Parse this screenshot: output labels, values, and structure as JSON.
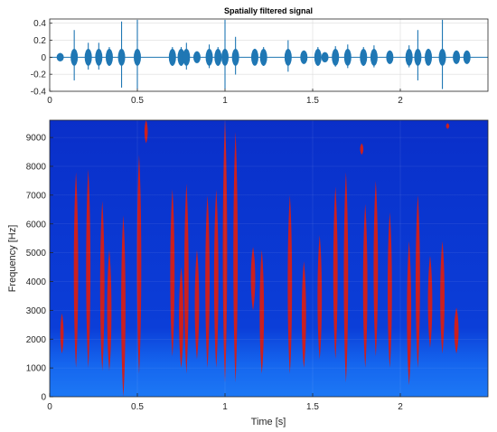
{
  "chart_data": [
    {
      "type": "line",
      "title": "Spatially filtered signal",
      "xlabel": "",
      "ylabel": "",
      "xlim": [
        0,
        2.5
      ],
      "ylim": [
        -0.4,
        0.45
      ],
      "xticks": [
        "0",
        "0.5",
        "1",
        "1.5",
        "2"
      ],
      "xtick_values": [
        0,
        0.5,
        1,
        1.5,
        2
      ],
      "yticks": [
        "0.4",
        "0.2",
        "0",
        "-0.2",
        "-0.4"
      ],
      "ytick_values": [
        0.4,
        0.2,
        0,
        -0.2,
        -0.4
      ],
      "grid": true,
      "series_color": "#1f77b4",
      "series": [
        {
          "bursts": [
            {
              "t": 0.06,
              "amp": 0.05
            },
            {
              "t": 0.14,
              "amp": 0.32
            },
            {
              "t": 0.22,
              "amp": 0.17
            },
            {
              "t": 0.28,
              "amp": 0.17
            },
            {
              "t": 0.34,
              "amp": 0.12
            },
            {
              "t": 0.41,
              "amp": 0.42
            },
            {
              "t": 0.5,
              "amp": 0.44
            },
            {
              "t": 0.7,
              "amp": 0.12
            },
            {
              "t": 0.75,
              "amp": 0.12
            },
            {
              "t": 0.78,
              "amp": 0.17
            },
            {
              "t": 0.84,
              "amp": 0.07
            },
            {
              "t": 0.91,
              "amp": 0.15
            },
            {
              "t": 0.96,
              "amp": 0.12
            },
            {
              "t": 1.0,
              "amp": 0.44
            },
            {
              "t": 1.06,
              "amp": 0.24
            },
            {
              "t": 1.17,
              "amp": 0.1
            },
            {
              "t": 1.22,
              "amp": 0.12
            },
            {
              "t": 1.36,
              "amp": 0.2
            },
            {
              "t": 1.45,
              "amp": 0.08
            },
            {
              "t": 1.53,
              "amp": 0.12
            },
            {
              "t": 1.57,
              "amp": 0.06
            },
            {
              "t": 1.63,
              "amp": 0.13
            },
            {
              "t": 1.7,
              "amp": 0.15
            },
            {
              "t": 1.79,
              "amp": 0.12
            },
            {
              "t": 1.85,
              "amp": 0.14
            },
            {
              "t": 1.94,
              "amp": 0.08
            },
            {
              "t": 2.05,
              "amp": 0.14
            },
            {
              "t": 2.1,
              "amp": 0.32
            },
            {
              "t": 2.16,
              "amp": 0.1
            },
            {
              "t": 2.24,
              "amp": 0.44
            },
            {
              "t": 2.32,
              "amp": 0.08
            },
            {
              "t": 2.38,
              "amp": 0.08
            }
          ]
        }
      ]
    },
    {
      "type": "heatmap",
      "title": "",
      "xlabel": "Time [s]",
      "ylabel": "Frequency [Hz]",
      "xlim": [
        0,
        2.5
      ],
      "ylim": [
        0,
        9600
      ],
      "xticks": [
        "0",
        "0.5",
        "1",
        "1.5",
        "2"
      ],
      "xtick_values": [
        0,
        0.5,
        1,
        1.5,
        2
      ],
      "yticks": [
        "0",
        "1000",
        "2000",
        "3000",
        "4000",
        "5000",
        "6000",
        "7000",
        "8000",
        "9000"
      ],
      "ytick_values": [
        0,
        1000,
        2000,
        3000,
        4000,
        5000,
        6000,
        7000,
        8000,
        9000
      ],
      "background_color": "#0a3ad6",
      "lowband_color": "#1a6cf0",
      "feature_color": "#cc1f1f",
      "grid": true,
      "features": [
        {
          "t": 0.07,
          "f_low": 1500,
          "f_high": 2900
        },
        {
          "t": 0.15,
          "f_low": 1000,
          "f_high": 7800
        },
        {
          "t": 0.22,
          "f_low": 1000,
          "f_high": 7900
        },
        {
          "t": 0.3,
          "f_low": 900,
          "f_high": 6800
        },
        {
          "t": 0.34,
          "f_low": 900,
          "f_high": 5100
        },
        {
          "t": 0.42,
          "f_low": 0,
          "f_high": 6300
        },
        {
          "t": 0.51,
          "f_low": 800,
          "f_high": 8400
        },
        {
          "t": 0.55,
          "f_low": 8800,
          "f_high": 9600
        },
        {
          "t": 0.7,
          "f_low": 1400,
          "f_high": 7200
        },
        {
          "t": 0.75,
          "f_low": 1000,
          "f_high": 4500
        },
        {
          "t": 0.78,
          "f_low": 800,
          "f_high": 7400
        },
        {
          "t": 0.84,
          "f_low": 1300,
          "f_high": 5100
        },
        {
          "t": 0.9,
          "f_low": 1000,
          "f_high": 7000
        },
        {
          "t": 0.95,
          "f_low": 1000,
          "f_high": 7200
        },
        {
          "t": 1.0,
          "f_low": 500,
          "f_high": 9600
        },
        {
          "t": 1.06,
          "f_low": 500,
          "f_high": 9200
        },
        {
          "t": 1.16,
          "f_low": 3000,
          "f_high": 5200
        },
        {
          "t": 1.21,
          "f_low": 800,
          "f_high": 5100
        },
        {
          "t": 1.37,
          "f_low": 800,
          "f_high": 7000
        },
        {
          "t": 1.45,
          "f_low": 1000,
          "f_high": 4700
        },
        {
          "t": 1.54,
          "f_low": 1300,
          "f_high": 5600
        },
        {
          "t": 1.63,
          "f_low": 1300,
          "f_high": 7300
        },
        {
          "t": 1.69,
          "f_low": 500,
          "f_high": 7800
        },
        {
          "t": 1.78,
          "f_low": 8400,
          "f_high": 8800
        },
        {
          "t": 1.8,
          "f_low": 1000,
          "f_high": 6700
        },
        {
          "t": 1.86,
          "f_low": 1400,
          "f_high": 7500
        },
        {
          "t": 1.94,
          "f_low": 1000,
          "f_high": 6400
        },
        {
          "t": 2.05,
          "f_low": 400,
          "f_high": 5400
        },
        {
          "t": 2.1,
          "f_low": 1000,
          "f_high": 7000
        },
        {
          "t": 2.17,
          "f_low": 1700,
          "f_high": 4900
        },
        {
          "t": 2.24,
          "f_low": 1500,
          "f_high": 5400
        },
        {
          "t": 2.32,
          "f_low": 1500,
          "f_high": 3100
        },
        {
          "t": 2.27,
          "f_low": 9300,
          "f_high": 9500
        }
      ]
    }
  ]
}
